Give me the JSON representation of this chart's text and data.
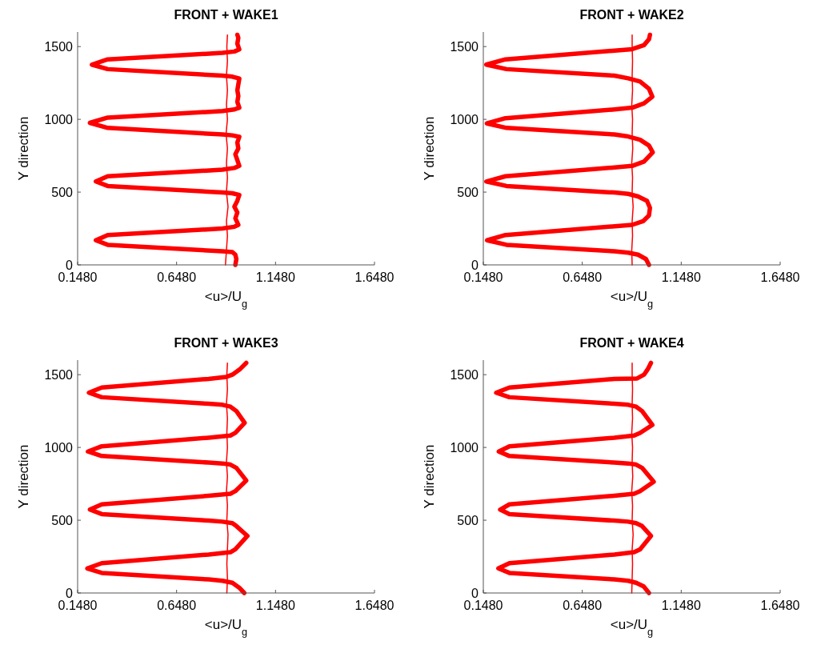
{
  "chart_data": [
    {
      "type": "line",
      "title": "FRONT + WAKE1",
      "xlabel": "<u>/U$_{g}$",
      "ylabel": "Y direction",
      "xlim": [
        0.148,
        1.648
      ],
      "xticks": [
        {
          "value": 0.148,
          "label": "0.1480"
        },
        {
          "value": 0.648,
          "label": "0.6480"
        },
        {
          "value": 1.148,
          "label": "1.1480"
        },
        {
          "value": 1.648,
          "label": "1.6480"
        }
      ],
      "ylim": [
        0,
        1600
      ],
      "yticks": [
        0,
        500,
        1000,
        1500
      ],
      "series": [
        {
          "color": "#ff0000",
          "x": [
            0.945,
            0.95,
            0.945,
            0.93,
            0.88,
            0.3,
            0.24,
            0.3,
            0.88,
            0.94,
            0.96,
            0.945,
            0.955,
            0.94,
            0.955,
            0.965,
            0.93,
            0.88,
            0.3,
            0.24,
            0.3,
            0.88,
            0.94,
            0.965,
            0.955,
            0.945,
            0.96,
            0.955,
            0.965,
            0.93,
            0.88,
            0.3,
            0.21,
            0.3,
            0.88,
            0.94,
            0.965,
            0.955,
            0.96,
            0.955,
            0.96,
            0.965,
            0.93,
            0.88,
            0.3,
            0.22,
            0.3,
            0.88,
            0.94,
            0.965,
            0.955,
            0.96,
            0.955
          ],
          "values": [
            0,
            40,
            70,
            88,
            93,
            138,
            169,
            205,
            250,
            262,
            275,
            320,
            360,
            400,
            440,
            480,
            492,
            497,
            542,
            573,
            609,
            654,
            666,
            680,
            720,
            760,
            800,
            840,
            880,
            890,
            896,
            941,
            976,
            1012,
            1057,
            1068,
            1080,
            1120,
            1160,
            1200,
            1240,
            1280,
            1293,
            1300,
            1345,
            1376,
            1412,
            1457,
            1466,
            1480,
            1520,
            1560,
            1581
          ]
        },
        {
          "color": "#ff0000",
          "x": [
            0.895,
            0.9,
            0.905,
            0.9,
            0.908,
            0.9,
            0.905,
            0.9,
            0.905,
            0.898,
            0.905,
            0.9,
            0.905,
            0.9,
            0.905,
            0.902,
            0.905
          ],
          "values": [
            0,
            100,
            200,
            300,
            400,
            500,
            600,
            700,
            800,
            900,
            1000,
            1100,
            1200,
            1300,
            1400,
            1500,
            1580
          ]
        }
      ]
    },
    {
      "type": "line",
      "title": "FRONT + WAKE2",
      "xlabel": "<u>/U$_{g}$",
      "ylabel": "Y direction",
      "xlim": [
        0.148,
        1.648
      ],
      "xticks": [
        {
          "value": 0.148,
          "label": "0.1480"
        },
        {
          "value": 0.648,
          "label": "0.6480"
        },
        {
          "value": 1.148,
          "label": "1.1480"
        },
        {
          "value": 1.648,
          "label": "1.6480"
        }
      ],
      "ylim": [
        0,
        1600
      ],
      "yticks": [
        0,
        500,
        1000,
        1500
      ],
      "series": [
        {
          "color": "#ff0000",
          "x": [
            0.985,
            0.97,
            0.93,
            0.88,
            0.81,
            0.265,
            0.167,
            0.26,
            0.8,
            0.9,
            0.955,
            0.985,
            0.99,
            0.975,
            0.93,
            0.88,
            0.81,
            0.265,
            0.163,
            0.26,
            0.8,
            0.9,
            0.96,
            1.004,
            0.985,
            0.94,
            0.88,
            0.81,
            0.265,
            0.166,
            0.26,
            0.8,
            0.9,
            0.96,
            1.002,
            0.985,
            0.94,
            0.88,
            0.81,
            0.265,
            0.163,
            0.26,
            0.8,
            0.9,
            0.96,
            0.985,
            0.99
          ],
          "values": [
            0,
            40,
            70,
            84,
            93,
            138,
            169,
            205,
            264,
            275,
            300,
            340,
            392,
            440,
            470,
            488,
            497,
            542,
            573,
            609,
            668,
            680,
            710,
            773,
            820,
            860,
            882,
            896,
            941,
            972,
            1008,
            1067,
            1080,
            1110,
            1155,
            1210,
            1260,
            1282,
            1300,
            1345,
            1376,
            1412,
            1471,
            1482,
            1510,
            1550,
            1581
          ]
        },
        {
          "color": "#ff0000",
          "x": [
            0.9,
            0.898,
            0.902,
            0.9,
            0.905,
            0.9,
            0.902,
            0.898,
            0.903,
            0.9,
            0.902,
            0.898,
            0.902,
            0.9,
            0.902,
            0.9,
            0.9
          ],
          "values": [
            0,
            100,
            200,
            300,
            400,
            500,
            600,
            700,
            800,
            900,
            1000,
            1100,
            1200,
            1300,
            1400,
            1500,
            1580
          ]
        }
      ]
    },
    {
      "type": "line",
      "title": "FRONT + WAKE3",
      "xlabel": "<u>/U$_{g}$",
      "ylabel": "Y direction",
      "xlim": [
        0.148,
        1.648
      ],
      "xticks": [
        {
          "value": 0.148,
          "label": "0.1480"
        },
        {
          "value": 0.648,
          "label": "0.6480"
        },
        {
          "value": 1.148,
          "label": "1.1480"
        },
        {
          "value": 1.648,
          "label": "1.6480"
        }
      ],
      "ylim": [
        0,
        1600
      ],
      "yticks": [
        0,
        500,
        1000,
        1500
      ],
      "series": [
        {
          "color": "#ff0000",
          "x": [
            0.99,
            0.965,
            0.93,
            0.88,
            0.81,
            0.27,
            0.197,
            0.27,
            0.81,
            0.92,
            0.945,
            1.006,
            0.95,
            0.93,
            0.88,
            0.81,
            0.27,
            0.21,
            0.27,
            0.81,
            0.92,
            0.945,
            1.0,
            0.95,
            0.92,
            0.88,
            0.81,
            0.27,
            0.2,
            0.27,
            0.81,
            0.92,
            0.945,
            0.992,
            0.95,
            0.92,
            0.88,
            0.81,
            0.27,
            0.205,
            0.27,
            0.81,
            0.9,
            0.93,
            0.97,
            1.0
          ],
          "values": [
            0,
            36,
            70,
            84,
            93,
            138,
            169,
            205,
            264,
            280,
            300,
            392,
            460,
            480,
            490,
            497,
            542,
            573,
            609,
            668,
            682,
            700,
            773,
            860,
            882,
            890,
            896,
            941,
            972,
            1008,
            1067,
            1082,
            1100,
            1169,
            1250,
            1280,
            1293,
            1300,
            1345,
            1376,
            1412,
            1471,
            1485,
            1500,
            1540,
            1581
          ]
        },
        {
          "color": "#ff0000",
          "x": [
            0.902,
            0.905,
            0.902,
            0.905,
            0.908,
            0.902,
            0.905,
            0.9,
            0.905,
            0.9,
            0.905,
            0.902,
            0.905,
            0.9,
            0.905,
            0.902,
            0.905
          ],
          "values": [
            0,
            100,
            200,
            300,
            400,
            500,
            600,
            700,
            800,
            900,
            1000,
            1100,
            1200,
            1300,
            1400,
            1500,
            1580
          ]
        }
      ]
    },
    {
      "type": "line",
      "title": "FRONT + WAKE4",
      "xlabel": "<u>/U$_{g}$",
      "ylabel": "Y direction",
      "xlim": [
        0.148,
        1.648
      ],
      "xticks": [
        {
          "value": 0.148,
          "label": "0.1480"
        },
        {
          "value": 0.648,
          "label": "0.6480"
        },
        {
          "value": 1.148,
          "label": "1.1480"
        },
        {
          "value": 1.648,
          "label": "1.6480"
        }
      ],
      "ylim": [
        0,
        1600
      ],
      "yticks": [
        0,
        500,
        1000,
        1500
      ],
      "series": [
        {
          "color": "#ff0000",
          "x": [
            0.985,
            0.958,
            0.92,
            0.88,
            0.81,
            0.28,
            0.224,
            0.28,
            0.81,
            0.91,
            0.94,
            0.995,
            0.95,
            0.92,
            0.88,
            0.81,
            0.28,
            0.233,
            0.28,
            0.81,
            0.91,
            0.94,
            1.009,
            0.95,
            0.92,
            0.88,
            0.81,
            0.28,
            0.226,
            0.28,
            0.81,
            0.91,
            0.94,
            1.002,
            0.95,
            0.92,
            0.88,
            0.81,
            0.28,
            0.213,
            0.28,
            0.81,
            0.925,
            0.96,
            0.98,
            0.995
          ],
          "values": [
            0,
            45,
            70,
            84,
            93,
            138,
            169,
            205,
            264,
            280,
            300,
            392,
            460,
            480,
            490,
            497,
            542,
            573,
            609,
            668,
            682,
            700,
            764,
            860,
            882,
            890,
            896,
            941,
            972,
            1008,
            1067,
            1082,
            1100,
            1155,
            1250,
            1280,
            1293,
            1300,
            1345,
            1376,
            1412,
            1471,
            1474,
            1500,
            1540,
            1581
          ]
        },
        {
          "color": "#ff0000",
          "x": [
            0.898,
            0.9,
            0.902,
            0.9,
            0.905,
            0.9,
            0.902,
            0.898,
            0.903,
            0.9,
            0.902,
            0.898,
            0.902,
            0.9,
            0.902,
            0.9,
            0.9
          ],
          "values": [
            0,
            100,
            200,
            300,
            400,
            500,
            600,
            700,
            800,
            900,
            1000,
            1100,
            1200,
            1300,
            1400,
            1500,
            1580
          ]
        }
      ]
    }
  ]
}
